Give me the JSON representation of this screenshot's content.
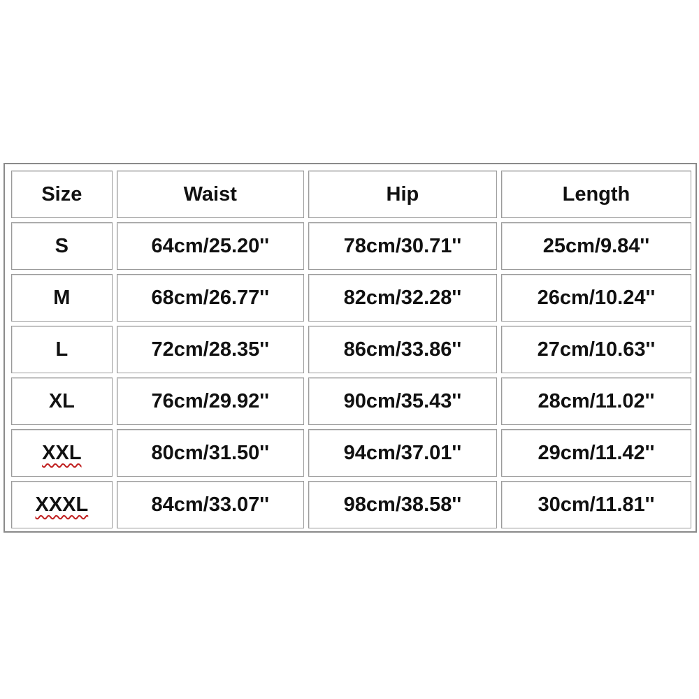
{
  "table": {
    "header": [
      "Size",
      "Waist",
      "Hip",
      "Length"
    ],
    "rows": [
      [
        "S",
        "64cm/25.20''",
        "78cm/30.71''",
        "25cm/9.84''"
      ],
      [
        "M",
        "68cm/26.77''",
        "82cm/32.28''",
        "26cm/10.24''"
      ],
      [
        "L",
        "72cm/28.35''",
        "86cm/33.86''",
        "27cm/10.63''"
      ],
      [
        "XL",
        "76cm/29.92''",
        "90cm/35.43''",
        "28cm/11.02''"
      ],
      [
        "XXL",
        "80cm/31.50''",
        "94cm/37.01''",
        "29cm/11.42''"
      ],
      [
        "XXXL",
        "84cm/33.07''",
        "98cm/38.58''",
        "30cm/11.81''"
      ]
    ]
  }
}
